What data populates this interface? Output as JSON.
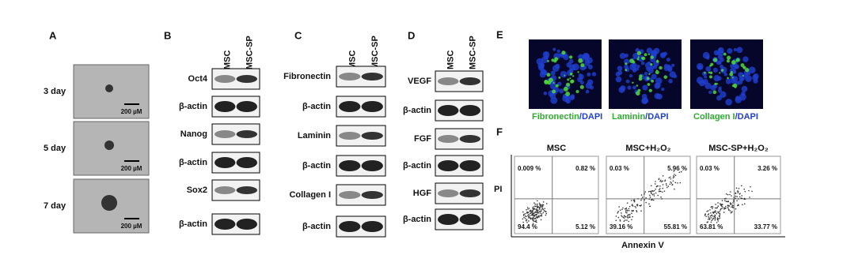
{
  "panel_a": {
    "label": "A",
    "rows": [
      {
        "label": "3 day",
        "scale": "200 µM"
      },
      {
        "label": "5 day",
        "scale": "200 µM"
      },
      {
        "label": "7 day",
        "scale": "200 µM"
      }
    ]
  },
  "panel_b": {
    "label": "B",
    "columns": [
      "MSC",
      "MSC-SP"
    ],
    "rows": [
      "Oct4",
      "β-actin",
      "Nanog",
      "β-actin",
      "Sox2",
      "β-actin"
    ]
  },
  "panel_c": {
    "label": "C",
    "columns": [
      "MSC",
      "MSC-SP"
    ],
    "rows": [
      "Fibronectin",
      "β-actin",
      "Laminin",
      "β-actin",
      "Collagen I",
      "β-actin"
    ]
  },
  "panel_d": {
    "label": "D",
    "columns": [
      "MSC",
      "MSC-SP"
    ],
    "rows": [
      "VEGF",
      "β-actin",
      "FGF",
      "β-actin",
      "HGF",
      "β-actin"
    ]
  },
  "panel_e": {
    "label": "E",
    "images": [
      {
        "stain": "Fibronectin",
        "counterstain": "/DAPI"
      },
      {
        "stain": "Laminin",
        "counterstain": "/DAPI"
      },
      {
        "stain": "Collagen I",
        "counterstain": "/DAPI"
      }
    ]
  },
  "panel_f": {
    "label": "F",
    "y_label": "PI",
    "x_label": "Annexin V",
    "plots": [
      {
        "title": "MSC",
        "quadrants": {
          "ul": "0.009 %",
          "ur": "0.82 %",
          "ll": "94.4 %",
          "lr": "5.12 %"
        }
      },
      {
        "title": "MSC+H₂O₂",
        "quadrants": {
          "ul": "0.03 %",
          "ur": "5.96 %",
          "ll": "39.16 %",
          "lr": "55.81 %"
        }
      },
      {
        "title": "MSC-SP+H₂O₂",
        "quadrants": {
          "ul": "0.03 %",
          "ur": "3.26 %",
          "ll": "63.81 %",
          "lr": "33.77 %"
        }
      }
    ]
  }
}
